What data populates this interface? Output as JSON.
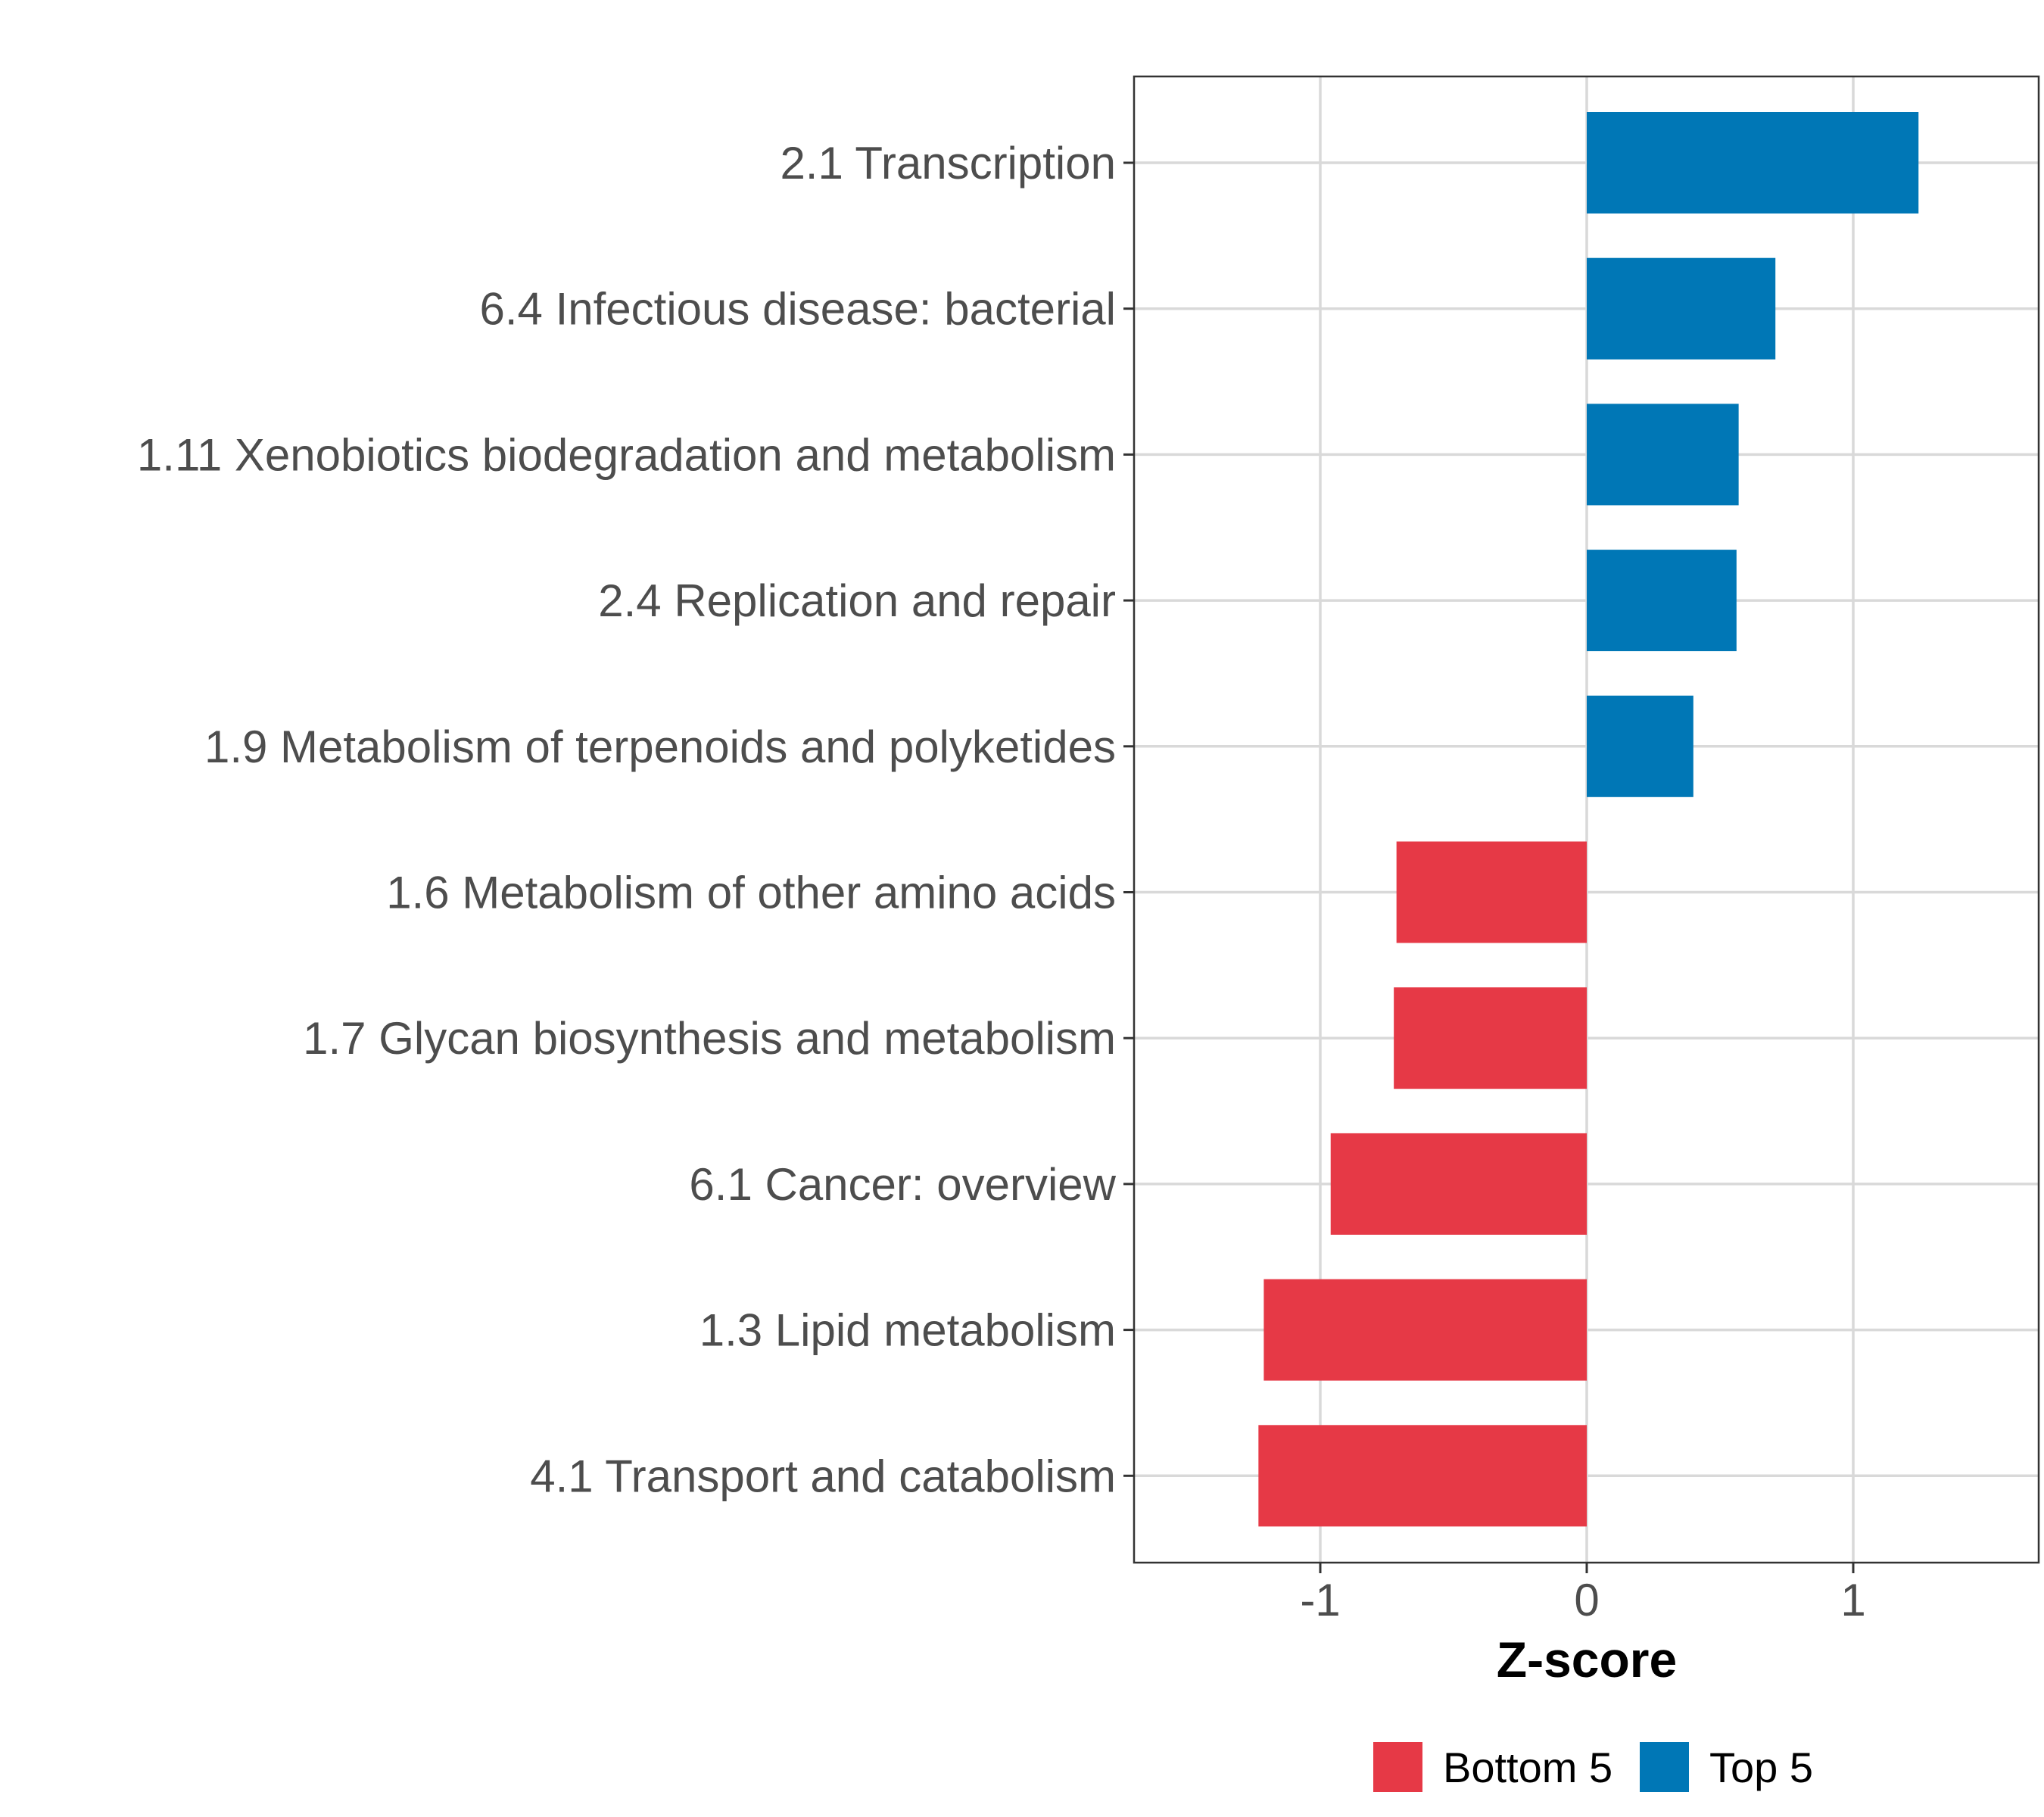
{
  "chart_data": {
    "type": "bar",
    "orientation": "horizontal",
    "title": "",
    "xlabel": "Z-score",
    "ylabel": "",
    "xlim": [
      -1.7,
      1.7
    ],
    "xticks": [
      -1,
      0,
      1
    ],
    "xtick_labels": [
      "-1",
      "0",
      "1"
    ],
    "grid": true,
    "legend_position": "bottom",
    "categories": [
      "2.1 Transcription",
      "6.4 Infectious disease: bacterial",
      "1.11 Xenobiotics biodegradation and metabolism",
      "2.4 Replication and repair",
      "1.9 Metabolism of terpenoids and polyketides",
      "1.6 Metabolism of other amino acids",
      "1.7 Glycan biosynthesis and metabolism",
      "6.1 Cancer: overview",
      "1.3 Lipid metabolism",
      "4.1 Transport and catabolism"
    ],
    "values": [
      1.245,
      0.708,
      0.57,
      0.562,
      0.4,
      -0.714,
      -0.724,
      -0.961,
      -1.212,
      -1.232
    ],
    "groups": [
      "Top 5",
      "Top 5",
      "Top 5",
      "Top 5",
      "Top 5",
      "Bottom 5",
      "Bottom 5",
      "Bottom 5",
      "Bottom 5",
      "Bottom 5"
    ],
    "legend": [
      {
        "name": "Bottom 5",
        "color": "#E63946"
      },
      {
        "name": "Top 5",
        "color": "#0077B6"
      }
    ]
  }
}
